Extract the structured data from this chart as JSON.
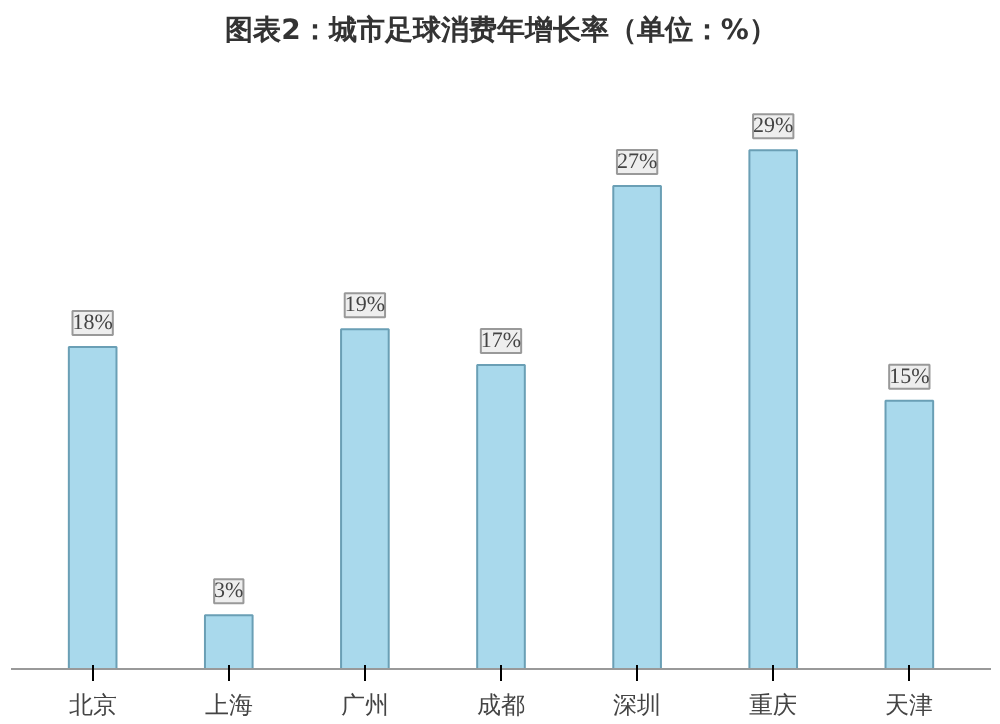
{
  "chart_data": {
    "type": "bar",
    "title": "图表2：城市足球消费年增长率（单位：%）",
    "categories": [
      "北京",
      "上海",
      "广州",
      "成都",
      "深圳",
      "重庆",
      "天津"
    ],
    "values": [
      18,
      3,
      19,
      17,
      27,
      29,
      15
    ],
    "color": "#a9d9ec",
    "value_labels": [
      "18%",
      "3%",
      "19%",
      "17%",
      "27%",
      "29%",
      "15%"
    ],
    "grid": false
  }
}
